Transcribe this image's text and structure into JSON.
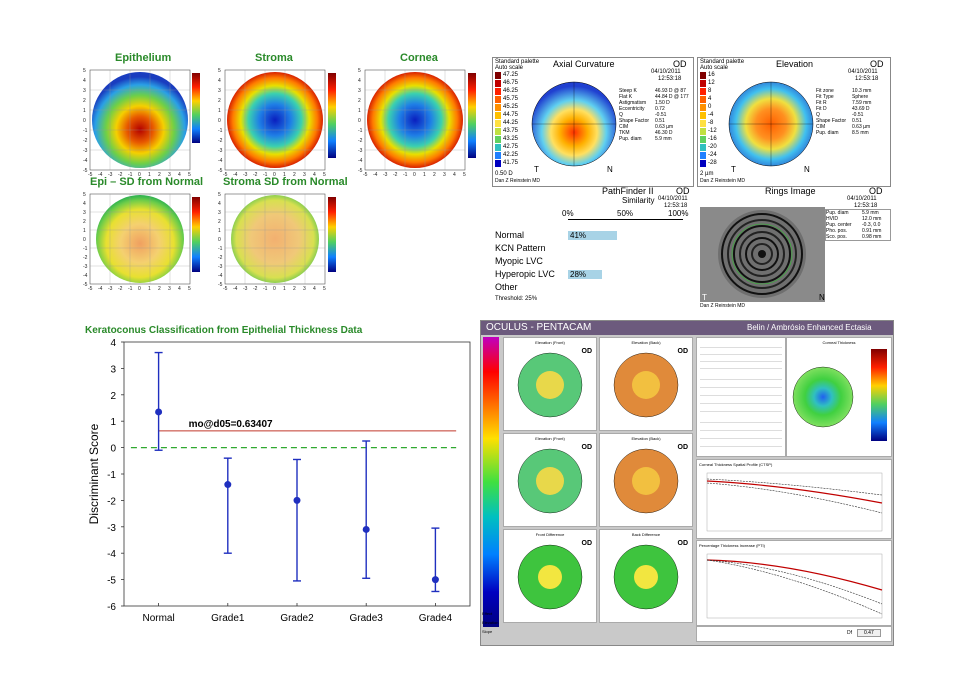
{
  "epithelium_maps": {
    "titles": [
      "Epithelium",
      "Stroma",
      "Cornea",
      "Epi – SD from Normal",
      "Stroma SD from Normal"
    ],
    "axis_ticks": [
      "-5",
      "-4",
      "-3",
      "-2",
      "-1",
      "0",
      "1",
      "2",
      "3",
      "4",
      "5"
    ],
    "y_ticks": [
      "5",
      "4",
      "3",
      "2",
      "1",
      "0",
      "-1",
      "-2",
      "-3",
      "-4",
      "-5"
    ]
  },
  "axial": {
    "palette": "Standard palette",
    "autoscale": "Auto scale",
    "title": "Axial Curvature",
    "eye": "OD",
    "date": "04/10/2011",
    "time": "12:53:18",
    "scale": [
      "47.25",
      "46.75",
      "46.25",
      "45.75",
      "45.25",
      "44.75",
      "44.25",
      "43.75",
      "43.25",
      "42.75",
      "42.25",
      "41.75"
    ],
    "scale_footer": "0.50 D",
    "temporal": "T",
    "nasal": "N",
    "author": "Dan Z Reinstein MD",
    "stats_labels": [
      "Steep K",
      "Flat K",
      "Astigmatism",
      "Eccentricity",
      "Q",
      "Shape Factor",
      "CIM",
      "TKM",
      "Pup. diam"
    ],
    "stats_values": [
      "46.93 D @ 87",
      "44.84 D @ 177",
      "1.50 D",
      "0.72",
      "-0.51",
      "0.51",
      "0.63 µm",
      "46.30 D",
      "5.9 mm"
    ]
  },
  "elevation": {
    "palette": "Standard palette",
    "autoscale": "Auto scale",
    "title": "Elevation",
    "eye": "OD",
    "date": "04/10/2011",
    "time": "12:53:18",
    "scale": [
      "16",
      "12",
      "8",
      "4",
      "0",
      "-4",
      "-8",
      "-12",
      "-16",
      "-20",
      "-24",
      "-28"
    ],
    "scale_footer": "2 µm",
    "temporal": "T",
    "nasal": "N",
    "author": "Dan Z Reinstein MD",
    "stats_labels": [
      "Fit zone",
      "Fit Type",
      "Fit R",
      "Fit D",
      "Q",
      "Shape Factor",
      "CIM",
      "Pup. diam"
    ],
    "stats_values": [
      "10.3 mm",
      "Sphere",
      "7.59 mm",
      "43.69 D",
      "-0.51",
      "0.51",
      "0.63 µm",
      "8.5 mm"
    ]
  },
  "pathfinder": {
    "title": "PathFinder II",
    "eye": "OD",
    "date": "04/10/2011",
    "time": "12:53:18",
    "similarity_label": "Similarity",
    "ticks": [
      "0%",
      "50%",
      "100%"
    ],
    "rows": [
      {
        "label": "Normal",
        "value_label": "41%",
        "value": 41
      },
      {
        "label": "KCN Pattern",
        "value_label": "",
        "value": 0
      },
      {
        "label": "Myopic LVC",
        "value_label": "",
        "value": 0
      },
      {
        "label": "Hyperopic LVC",
        "value_label": "28%",
        "value": 28
      },
      {
        "label": "Other",
        "value_label": "",
        "value": 0
      }
    ],
    "threshold": "Threshold: 25%"
  },
  "rings": {
    "title": "Rings Image",
    "eye": "OD",
    "date": "04/10/2011",
    "time": "12:53:18",
    "stats_labels": [
      "Pup. diam",
      "HVID",
      "Pup. center",
      "Pho. pos.",
      "Sco. pos."
    ],
    "stats_values": [
      "5.9 mm",
      "12.0 mm",
      "-0.3, 0.0",
      "0.91 mm",
      "0.98 mm"
    ],
    "temporal": "T",
    "nasal": "N",
    "author": "Dan Z Reinstein MD"
  },
  "kc_chart_title": "Keratoconus Classification from Epithelial Thickness Data",
  "chart_data": {
    "type": "scatter",
    "title": "",
    "xlabel": "",
    "ylabel": "Discriminant Score",
    "categories": [
      "Normal",
      "Grade1",
      "Grade2",
      "Grade3",
      "Grade4"
    ],
    "means": [
      1.35,
      -1.4,
      -2.0,
      -3.1,
      -5.0
    ],
    "upper": [
      3.6,
      -0.4,
      -0.45,
      0.25,
      -3.05
    ],
    "lower": [
      -0.1,
      -4.0,
      -5.05,
      -4.95,
      -5.45
    ],
    "ylim": [
      -6,
      4
    ],
    "yticks": [
      "4",
      "3",
      "2",
      "1",
      "0",
      "-1",
      "-2",
      "-3",
      "-4",
      "-5",
      "-6"
    ],
    "threshold_label": "mo@d05=0.63407",
    "threshold_value": 0.634,
    "zero_line": 0,
    "colors": {
      "points": "#1f2fbf",
      "threshold": "#c0392b",
      "zero": "#2fa82f"
    }
  },
  "pentacam": {
    "brand": "OCULUS  -  PENTACAM",
    "report": "Belin / Ambrósio Enhanced Ectasia",
    "map_titles": [
      "Elevation (Front)",
      "Elevation (Back)",
      "Elevation (Front)",
      "Elevation (Back)",
      "Front Difference",
      "Back Difference"
    ],
    "eye": "OD",
    "side_labels": [
      "Effect",
      "Elevation",
      "Slope"
    ],
    "thickness_title": "Corneal Thickness",
    "graph1_title": "Corneal Thickness Spatial Profile (CTSP)",
    "graph2_title": "Percentage Thickness Increase (PTI)",
    "dtotal_label": "Df",
    "dtotal_value": "0.47",
    "diameter_label": "Diameter"
  }
}
